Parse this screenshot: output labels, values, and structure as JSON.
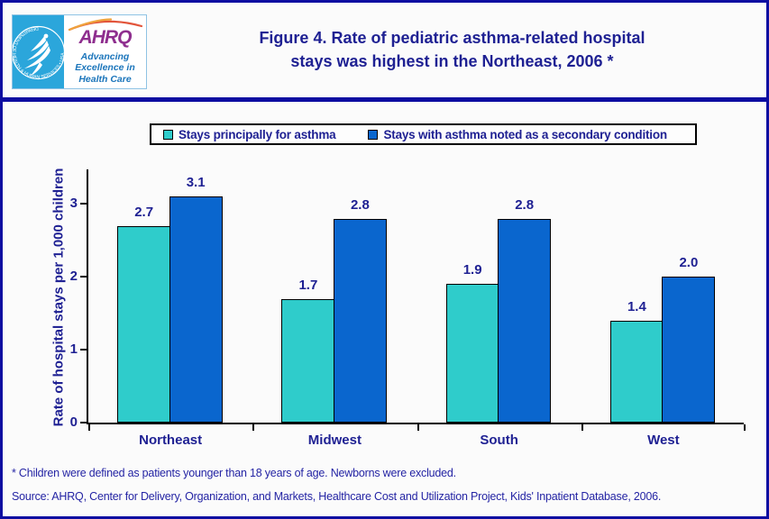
{
  "header": {
    "title_line1": "Figure 4. Rate of pediatric asthma-related hospital",
    "title_line2": "stays was highest in the Northeast, 2006 *",
    "logo": {
      "ahrq_acronym": "AHRQ",
      "tagline_line1": "Advancing",
      "tagline_line2": "Excellence in",
      "tagline_line3": "Health Care",
      "hhs_ring_text": "DEPARTMENT OF HEALTH & HUMAN SERVICES • USA"
    }
  },
  "legend": {
    "items": [
      {
        "label": "Stays principally for asthma",
        "color": "#2fcccb"
      },
      {
        "label": "Stays with asthma noted as a secondary condition",
        "color": "#0a66ce"
      }
    ]
  },
  "chart_data": {
    "type": "bar",
    "categories": [
      "Northeast",
      "Midwest",
      "South",
      "West"
    ],
    "series": [
      {
        "name": "Stays principally for asthma",
        "color": "#2fcccb",
        "values": [
          2.7,
          1.7,
          1.9,
          1.4
        ]
      },
      {
        "name": "Stays with asthma noted as a secondary condition",
        "color": "#0a66ce",
        "values": [
          3.1,
          2.8,
          2.8,
          2.0
        ]
      }
    ],
    "title": "Figure 4. Rate of pediatric asthma-related hospital stays was highest in the Northeast, 2006 *",
    "xlabel": "",
    "ylabel": "Rate of hospital stays per 1,000 children",
    "yticks": [
      0,
      1,
      2,
      3
    ],
    "ylim": [
      0,
      3.5
    ],
    "grid": false,
    "legend_position": "top",
    "data_labels": true
  },
  "footnotes": {
    "note": "* Children were defined as patients younger than 18 years of age. Newborns were excluded.",
    "source": "Source: AHRQ, Center for Delivery, Organization, and Markets, Healthcare Cost and Utilization Project, Kids' Inpatient Database, 2006."
  },
  "colors": {
    "accent_navy": "#0d0da1",
    "text_navy": "#1f2193",
    "logo_cyan": "#2ba6db",
    "logo_purple": "#8e2e8e",
    "logo_blue": "#1b75bb"
  }
}
